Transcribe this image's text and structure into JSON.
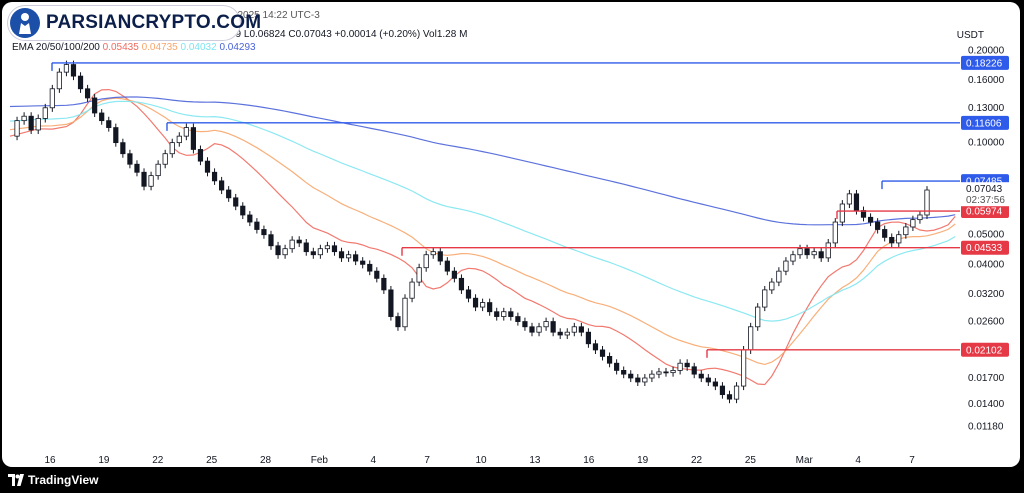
{
  "header": {
    "publish_line": "Ba...      ...tc1 published on TradingView.com, Mar 06, 2025 14:22 UTC-3",
    "ohlc_line": "69   L0.06824   C0.07043   +0.00014 (+0.20%)   Vol1.28 M",
    "ema_label": "EMA 20/50/100/200",
    "ema_values": [
      {
        "value": "0.05435",
        "color": "#f06a5f"
      },
      {
        "value": "0.04735",
        "color": "#f7a66c"
      },
      {
        "value": "0.04032",
        "color": "#7fe5f0"
      },
      {
        "value": "0.04293",
        "color": "#4a63d8"
      }
    ],
    "currency": "USDT"
  },
  "brand": {
    "name": "PARSIANCRYPTO.COM"
  },
  "footer": {
    "text": "TradingView"
  },
  "chart_data": {
    "type": "candlestick",
    "y_scale": "log",
    "ylim": [
      0.0105,
      0.23
    ],
    "y_ticks": [
      "0.20000",
      "0.16000",
      "0.13000",
      "0.10000",
      "0.05000",
      "0.04000",
      "0.03200",
      "0.02600",
      "0.01700",
      "0.01400",
      "0.01180"
    ],
    "x_ticks": [
      "16",
      "19",
      "22",
      "25",
      "28",
      "Feb",
      "4",
      "7",
      "10",
      "13",
      "16",
      "19",
      "22",
      "25",
      "Mar",
      "4",
      "7"
    ],
    "current_price": {
      "value": "0.07043",
      "countdown": "02:37:56"
    },
    "levels": [
      {
        "label": "0.18226",
        "value": 0.18226,
        "color": "#2f5bea",
        "from": "16"
      },
      {
        "label": "0.11606",
        "value": 0.11606,
        "color": "#2f5bea",
        "from": "22"
      },
      {
        "label": "0.07485",
        "value": 0.07485,
        "color": "#2f5bea",
        "from": "Mar+2"
      },
      {
        "label": "0.05974",
        "value": 0.05974,
        "color": "#e53946",
        "from": "Feb27"
      },
      {
        "label": "0.04533",
        "value": 0.04533,
        "color": "#e53946",
        "from": "Feb4"
      },
      {
        "label": "0.02102",
        "value": 0.02102,
        "color": "#e53946",
        "from": "Feb21"
      }
    ],
    "ema_series": [
      {
        "name": "EMA 20",
        "color": "#f06a5f"
      },
      {
        "name": "EMA 50",
        "color": "#f7a66c"
      },
      {
        "name": "EMA 100",
        "color": "#7fe5f0"
      },
      {
        "name": "EMA 200",
        "color": "#4a63d8"
      }
    ],
    "price_path": [
      [
        0,
        0.105
      ],
      [
        2,
        0.118
      ],
      [
        4,
        0.122
      ],
      [
        6,
        0.11
      ],
      [
        8,
        0.12
      ],
      [
        9,
        0.13
      ],
      [
        10,
        0.15
      ],
      [
        11,
        0.17
      ],
      [
        12,
        0.18
      ],
      [
        13,
        0.165
      ],
      [
        14,
        0.15
      ],
      [
        15,
        0.14
      ],
      [
        16,
        0.125
      ],
      [
        17,
        0.118
      ],
      [
        18,
        0.112
      ],
      [
        19,
        0.1
      ],
      [
        20,
        0.092
      ],
      [
        21,
        0.085
      ],
      [
        22,
        0.08
      ],
      [
        23,
        0.072
      ],
      [
        24,
        0.078
      ],
      [
        25,
        0.085
      ],
      [
        26,
        0.092
      ],
      [
        27,
        0.1
      ],
      [
        28,
        0.105
      ],
      [
        29,
        0.112
      ],
      [
        30,
        0.095
      ],
      [
        31,
        0.087
      ],
      [
        32,
        0.08
      ],
      [
        33,
        0.075
      ],
      [
        34,
        0.07
      ],
      [
        35,
        0.066
      ],
      [
        36,
        0.062
      ],
      [
        37,
        0.058
      ],
      [
        38,
        0.055
      ],
      [
        39,
        0.052
      ],
      [
        40,
        0.05
      ],
      [
        41,
        0.046
      ],
      [
        42,
        0.043
      ],
      [
        43,
        0.045
      ],
      [
        44,
        0.048
      ],
      [
        45,
        0.047
      ],
      [
        46,
        0.044
      ],
      [
        47,
        0.043
      ],
      [
        48,
        0.045
      ],
      [
        49,
        0.046
      ],
      [
        50,
        0.044
      ],
      [
        51,
        0.042
      ],
      [
        52,
        0.043
      ],
      [
        53,
        0.041
      ],
      [
        54,
        0.04
      ],
      [
        55,
        0.038
      ],
      [
        56,
        0.036
      ],
      [
        57,
        0.033
      ],
      [
        58,
        0.027
      ],
      [
        59,
        0.025
      ],
      [
        60,
        0.031
      ],
      [
        61,
        0.035
      ],
      [
        62,
        0.039
      ],
      [
        63,
        0.043
      ],
      [
        64,
        0.044
      ],
      [
        65,
        0.041
      ],
      [
        66,
        0.038
      ],
      [
        67,
        0.036
      ],
      [
        68,
        0.033
      ],
      [
        69,
        0.031
      ],
      [
        70,
        0.029
      ],
      [
        71,
        0.03
      ],
      [
        72,
        0.028
      ],
      [
        73,
        0.027
      ],
      [
        74,
        0.028
      ],
      [
        75,
        0.027
      ],
      [
        76,
        0.026
      ],
      [
        77,
        0.025
      ],
      [
        78,
        0.024
      ],
      [
        79,
        0.025
      ],
      [
        80,
        0.026
      ],
      [
        81,
        0.024
      ],
      [
        82,
        0.0235
      ],
      [
        83,
        0.024
      ],
      [
        84,
        0.025
      ],
      [
        85,
        0.024
      ],
      [
        86,
        0.022
      ],
      [
        87,
        0.021
      ],
      [
        88,
        0.02
      ],
      [
        89,
        0.019
      ],
      [
        90,
        0.018
      ],
      [
        91,
        0.0175
      ],
      [
        92,
        0.017
      ],
      [
        93,
        0.0165
      ],
      [
        94,
        0.017
      ],
      [
        95,
        0.0175
      ],
      [
        96,
        0.0178
      ],
      [
        97,
        0.0177
      ],
      [
        98,
        0.018
      ],
      [
        99,
        0.019
      ],
      [
        100,
        0.0185
      ],
      [
        101,
        0.0175
      ],
      [
        102,
        0.017
      ],
      [
        103,
        0.0165
      ],
      [
        104,
        0.016
      ],
      [
        105,
        0.015
      ],
      [
        106,
        0.0145
      ],
      [
        107,
        0.016
      ],
      [
        108,
        0.021
      ],
      [
        109,
        0.025
      ],
      [
        110,
        0.029
      ],
      [
        111,
        0.033
      ],
      [
        112,
        0.035
      ],
      [
        113,
        0.038
      ],
      [
        114,
        0.041
      ],
      [
        115,
        0.043
      ],
      [
        116,
        0.045
      ],
      [
        117,
        0.043
      ],
      [
        118,
        0.044
      ],
      [
        119,
        0.042
      ],
      [
        120,
        0.047
      ],
      [
        121,
        0.055
      ],
      [
        122,
        0.063
      ],
      [
        123,
        0.068
      ],
      [
        124,
        0.06
      ],
      [
        125,
        0.057
      ],
      [
        126,
        0.055
      ],
      [
        127,
        0.052
      ],
      [
        128,
        0.049
      ],
      [
        129,
        0.047
      ],
      [
        130,
        0.05
      ],
      [
        131,
        0.053
      ],
      [
        132,
        0.056
      ],
      [
        133,
        0.058
      ],
      [
        134,
        0.07
      ]
    ]
  }
}
